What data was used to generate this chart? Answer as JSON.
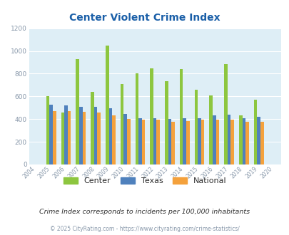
{
  "title": "Center Violent Crime Index",
  "years": [
    2004,
    2005,
    2006,
    2007,
    2008,
    2009,
    2010,
    2011,
    2012,
    2013,
    2014,
    2015,
    2016,
    2017,
    2018,
    2019,
    2020
  ],
  "center": [
    null,
    600,
    455,
    930,
    640,
    1045,
    710,
    800,
    848,
    735,
    838,
    660,
    608,
    885,
    435,
    570,
    null
  ],
  "texas": [
    null,
    528,
    518,
    510,
    510,
    495,
    445,
    410,
    410,
    402,
    410,
    410,
    432,
    442,
    410,
    417,
    null
  ],
  "national": [
    null,
    470,
    470,
    465,
    455,
    432,
    400,
    392,
    392,
    378,
    382,
    398,
    398,
    394,
    378,
    379,
    null
  ],
  "center_color": "#8dc63f",
  "texas_color": "#4f81bd",
  "national_color": "#f4a13c",
  "bg_color": "#deeef6",
  "ylim": [
    0,
    1200
  ],
  "yticks": [
    0,
    200,
    400,
    600,
    800,
    1000,
    1200
  ],
  "footnote1": "Crime Index corresponds to incidents per 100,000 inhabitants",
  "footnote2": "© 2025 CityRating.com - https://www.cityrating.com/crime-statistics/",
  "legend_labels": [
    "Center",
    "Texas",
    "National"
  ],
  "title_color": "#1a5fa8",
  "tick_color": "#8898aa",
  "footnote1_color": "#333333",
  "footnote2_color": "#8898aa"
}
